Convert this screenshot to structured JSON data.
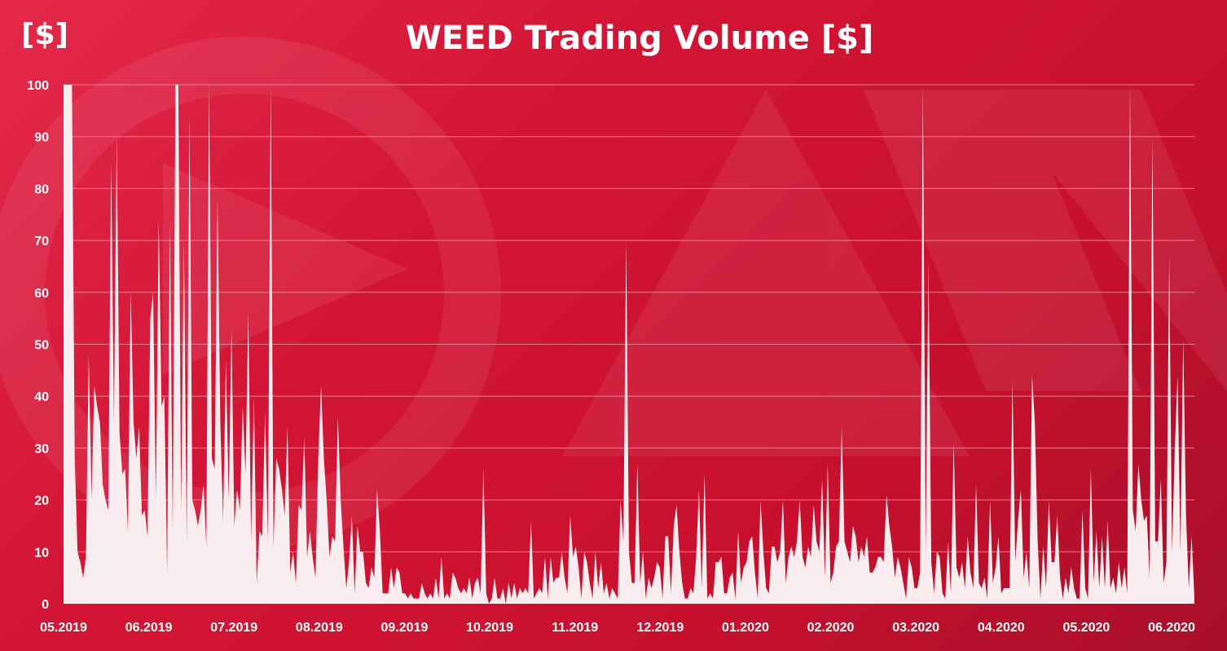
{
  "chart_data": {
    "type": "area",
    "title": "WEED Trading Volume [$]",
    "unit_label": "[$]",
    "xlabel": "",
    "ylabel": "",
    "ylim": [
      0,
      100
    ],
    "y_ticks": [
      0,
      10,
      20,
      30,
      40,
      50,
      60,
      70,
      80,
      90,
      100
    ],
    "x_ticks": [
      "05.2019",
      "06.2019",
      "07.2019",
      "08.2019",
      "09.2019",
      "10.2019",
      "11.2019",
      "12.2019",
      "01.2020",
      "02.2020",
      "03.2020",
      "04.2020",
      "05.2020",
      "06.2020"
    ],
    "grid": true,
    "colors": {
      "area": "#f8ecee",
      "grid": "#e9808f",
      "text": "#ffffff"
    },
    "series": [
      {
        "x_start": "2019-05-01",
        "x_step": "1 day",
        "values": [
          100,
          100,
          100,
          100,
          28,
          10,
          8,
          5,
          9,
          48,
          20,
          42,
          38,
          35,
          23,
          20,
          18,
          85,
          35,
          90,
          33,
          25,
          26,
          14,
          60,
          35,
          28,
          34,
          17,
          18,
          13,
          55,
          60,
          20,
          74,
          38,
          40,
          6,
          73,
          14,
          100,
          100,
          18,
          70,
          12,
          94,
          20,
          18,
          15,
          18,
          23,
          11,
          100,
          28,
          26,
          78,
          35,
          16,
          47,
          20,
          53,
          15,
          22,
          18,
          38,
          25,
          56,
          12,
          40,
          4,
          14,
          13,
          37,
          12,
          100,
          11,
          28,
          26,
          22,
          17,
          34,
          6,
          10,
          4,
          19,
          18,
          32,
          9,
          14,
          9,
          5,
          28,
          42,
          28,
          20,
          9,
          13,
          12,
          36,
          20,
          11,
          3,
          8,
          17,
          2,
          15,
          10,
          10,
          4,
          3,
          7,
          5,
          22,
          14,
          2,
          2,
          2,
          7,
          3,
          7,
          6,
          2,
          2,
          1,
          2,
          1,
          1,
          1,
          4,
          2,
          1,
          2,
          1,
          5,
          1,
          9,
          1,
          2,
          1,
          6,
          5,
          3,
          2,
          3,
          2,
          5,
          1,
          4,
          5,
          2,
          26,
          2,
          0,
          1,
          5,
          1,
          1,
          3,
          0,
          4,
          1,
          4,
          1,
          3,
          2,
          3,
          2,
          16,
          1,
          2,
          3,
          2,
          9,
          1,
          9,
          4,
          5,
          5,
          10,
          5,
          2,
          17,
          9,
          11,
          7,
          1,
          10,
          8,
          4,
          1,
          10,
          3,
          8,
          2,
          4,
          1,
          3,
          2,
          1,
          20,
          12,
          70,
          10,
          4,
          4,
          27,
          4,
          10,
          1,
          5,
          3,
          5,
          8,
          7,
          1,
          13,
          13,
          2,
          15,
          19,
          10,
          4,
          1,
          1,
          3,
          2,
          9,
          22,
          3,
          25,
          1,
          2,
          1,
          8,
          8,
          9,
          2,
          2,
          5,
          6,
          1,
          14,
          4,
          7,
          8,
          12,
          13,
          6,
          1,
          20,
          10,
          3,
          2,
          11,
          11,
          8,
          10,
          20,
          4,
          9,
          11,
          9,
          12,
          20,
          9,
          7,
          11,
          9,
          19,
          12,
          10,
          24,
          5,
          27,
          4,
          6,
          11,
          12,
          34,
          12,
          10,
          8,
          15,
          13,
          8,
          11,
          9,
          13,
          6,
          6,
          7,
          9,
          9,
          8,
          21,
          15,
          11,
          5,
          9,
          7,
          4,
          1,
          9,
          7,
          3,
          3,
          6,
          100,
          10,
          66,
          8,
          2,
          10,
          9,
          2,
          1,
          12,
          2,
          31,
          7,
          5,
          8,
          3,
          13,
          6,
          3,
          23,
          4,
          3,
          5,
          1,
          20,
          4,
          7,
          13,
          2,
          3,
          3,
          3,
          43,
          8,
          16,
          22,
          5,
          10,
          3,
          44,
          35,
          12,
          1,
          11,
          3,
          20,
          8,
          8,
          17,
          5,
          1,
          5,
          2,
          7,
          3,
          1,
          1,
          18,
          3,
          1,
          26,
          4,
          14,
          3,
          13,
          3,
          16,
          3,
          5,
          2,
          8,
          3,
          7,
          2,
          100,
          18,
          14,
          27,
          20,
          16,
          17,
          5,
          90,
          12,
          12,
          24,
          4,
          8,
          67,
          10,
          30,
          44,
          10,
          51,
          17,
          3,
          13,
          1
        ]
      }
    ]
  }
}
